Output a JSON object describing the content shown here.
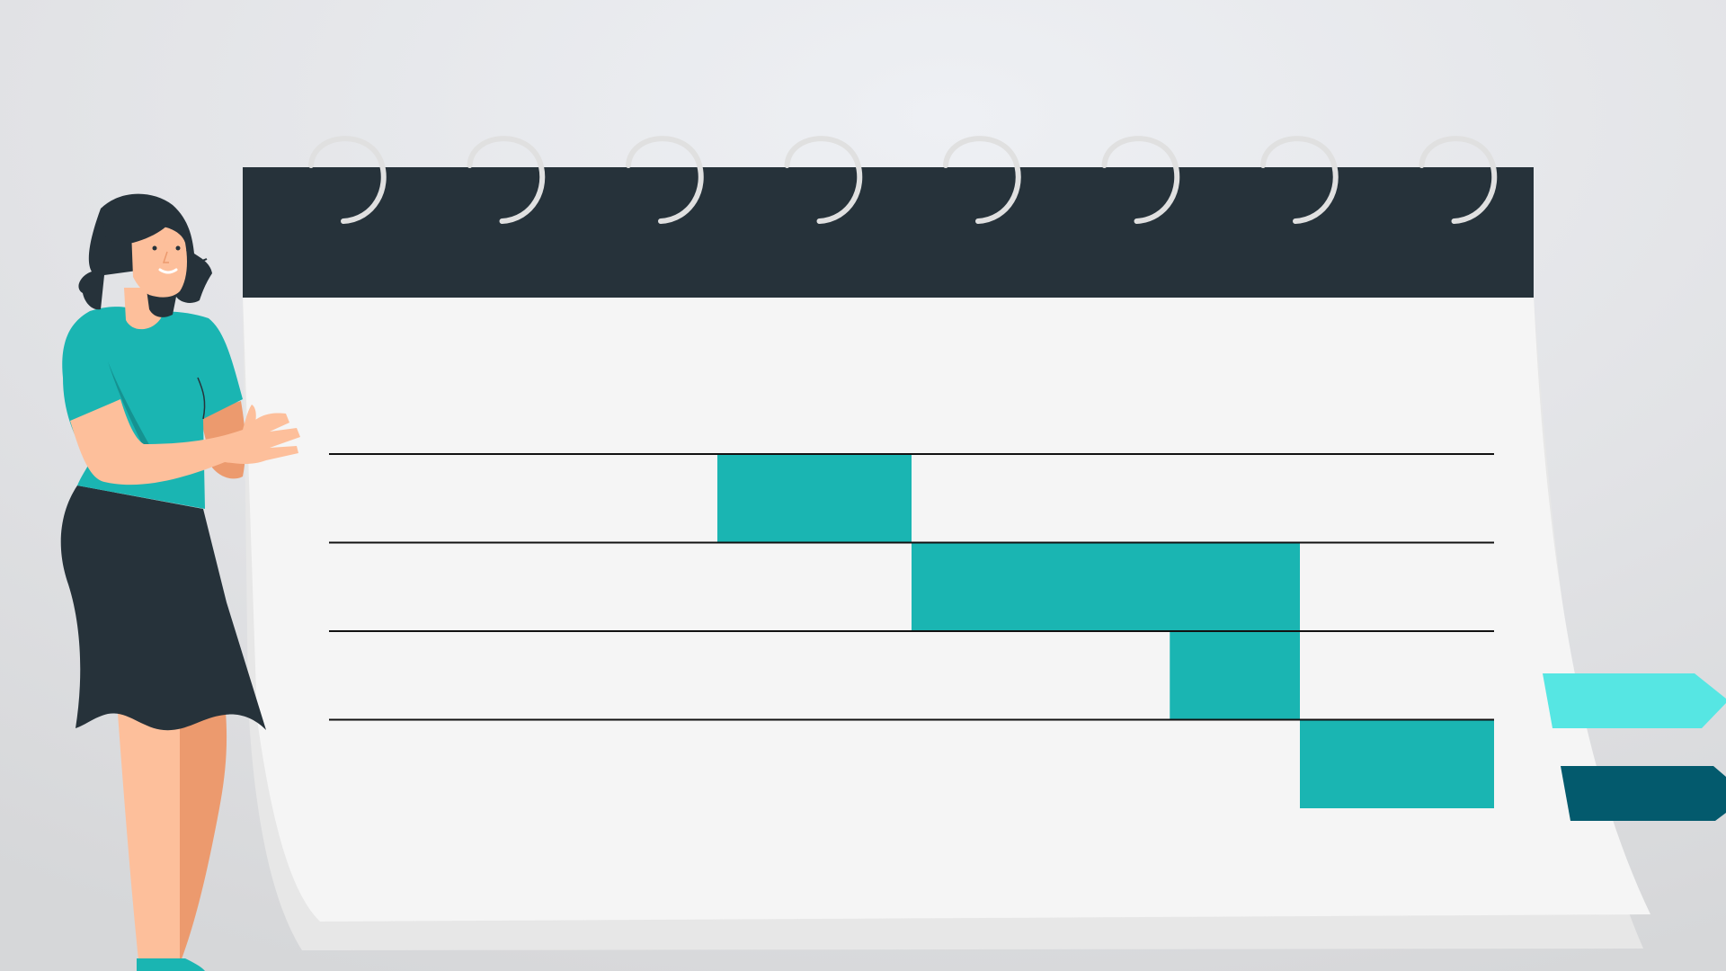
{
  "colors": {
    "background_light": "#eef0f4",
    "background_dark": "#d9dadc",
    "calendar_header": "#26323a",
    "calendar_page": "#f5f5f5",
    "calendar_page_back": "#e8e8e8",
    "spiral_ring": "#e0e0e0",
    "gantt_bar": "#1ab5b2",
    "gantt_rule": "#111111",
    "tab_light": "#56e6e3",
    "tab_dark": "#035a6d",
    "person_skin": "#fdbf9b",
    "person_skin_shadow": "#ec9a6e",
    "person_hair": "#26323a",
    "person_shirt": "#1ab5b2",
    "person_shirt_shade": "#159291",
    "person_skirt": "#26323a"
  },
  "calendar": {
    "ring_count": 8
  },
  "gantt": {
    "row_count": 4,
    "column_count": 6,
    "bars": [
      {
        "row": 0,
        "start_col": 2,
        "end_col": 3
      },
      {
        "row": 1,
        "start_col": 3,
        "end_col": 5
      },
      {
        "row": 2,
        "start_col": 4.33,
        "end_col": 5
      },
      {
        "row": 3,
        "start_col": 5,
        "end_col": 6
      }
    ]
  },
  "tabs": [
    {
      "name": "tab-light",
      "color": "#56e6e3"
    },
    {
      "name": "tab-dark",
      "color": "#035a6d"
    }
  ]
}
